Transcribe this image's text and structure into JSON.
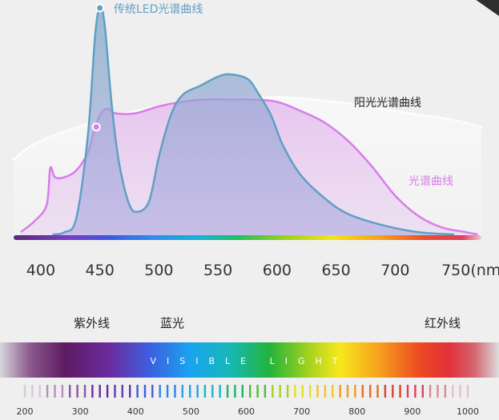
{
  "chart_data": {
    "type": "area",
    "x_unit": "(nm)",
    "x_ticks": [
      400,
      450,
      500,
      550,
      600,
      650,
      700,
      750
    ],
    "xlim": [
      377,
      773
    ],
    "y_scale": "relative intensity (unlabeled)",
    "series": [
      {
        "name": "传统LED光谱曲线",
        "color": "#5fa0c4",
        "points": [
          [
            410,
            0.01
          ],
          [
            420,
            0.02
          ],
          [
            430,
            0.08
          ],
          [
            440,
            0.45
          ],
          [
            446,
            0.88
          ],
          [
            450,
            1.0
          ],
          [
            454,
            0.93
          ],
          [
            460,
            0.58
          ],
          [
            466,
            0.33
          ],
          [
            475,
            0.14
          ],
          [
            483,
            0.11
          ],
          [
            492,
            0.16
          ],
          [
            500,
            0.35
          ],
          [
            510,
            0.53
          ],
          [
            520,
            0.62
          ],
          [
            535,
            0.66
          ],
          [
            550,
            0.7
          ],
          [
            560,
            0.71
          ],
          [
            575,
            0.69
          ],
          [
            585,
            0.62
          ],
          [
            595,
            0.53
          ],
          [
            605,
            0.4
          ],
          [
            620,
            0.27
          ],
          [
            640,
            0.17
          ],
          [
            660,
            0.1
          ],
          [
            690,
            0.05
          ],
          [
            720,
            0.02
          ],
          [
            750,
            0.01
          ]
        ]
      },
      {
        "name": "光谱曲线",
        "color": "#d77ee9",
        "points": [
          [
            383,
            0.02
          ],
          [
            395,
            0.07
          ],
          [
            405,
            0.14
          ],
          [
            408,
            0.3
          ],
          [
            412,
            0.26
          ],
          [
            420,
            0.26
          ],
          [
            430,
            0.29
          ],
          [
            440,
            0.37
          ],
          [
            446,
            0.48
          ],
          [
            451,
            0.54
          ],
          [
            457,
            0.56
          ],
          [
            463,
            0.54
          ],
          [
            480,
            0.54
          ],
          [
            500,
            0.57
          ],
          [
            520,
            0.59
          ],
          [
            540,
            0.6
          ],
          [
            560,
            0.6
          ],
          [
            580,
            0.6
          ],
          [
            600,
            0.59
          ],
          [
            620,
            0.55
          ],
          [
            640,
            0.5
          ],
          [
            660,
            0.42
          ],
          [
            680,
            0.31
          ],
          [
            700,
            0.18
          ],
          [
            720,
            0.09
          ],
          [
            740,
            0.04
          ],
          [
            760,
            0.02
          ],
          [
            770,
            0.01
          ]
        ]
      },
      {
        "name": "阳光光谱曲线",
        "color": "#ffffff",
        "points": [
          [
            377,
            0.34
          ],
          [
            400,
            0.42
          ],
          [
            450,
            0.51
          ],
          [
            500,
            0.57
          ],
          [
            550,
            0.6
          ],
          [
            600,
            0.61
          ],
          [
            650,
            0.59
          ],
          [
            700,
            0.55
          ],
          [
            750,
            0.51
          ],
          [
            773,
            0.48
          ]
        ]
      }
    ],
    "highlighted_points": [
      {
        "series": "传统LED光谱曲线",
        "x": 450
      },
      {
        "series": "光谱曲线",
        "x": 447
      }
    ]
  },
  "labels": {
    "led_curve": "传统LED光谱曲线",
    "sun_curve": "阳光光谱曲线",
    "spectrum_curve": "光谱曲线",
    "ultraviolet": "紫外线",
    "blue_light": "蓝光",
    "infrared": "红外线",
    "visible_light": "VISIBLE LIGHT"
  },
  "wavelength_scale": {
    "ticks": [
      200,
      300,
      400,
      500,
      600,
      700,
      800,
      900,
      1000
    ]
  },
  "colors": {
    "background": "#efefef",
    "led": "#5fa0c4",
    "spectrum": "#d77ee9",
    "sun_label": "#222222",
    "tick_text": "#333333"
  }
}
